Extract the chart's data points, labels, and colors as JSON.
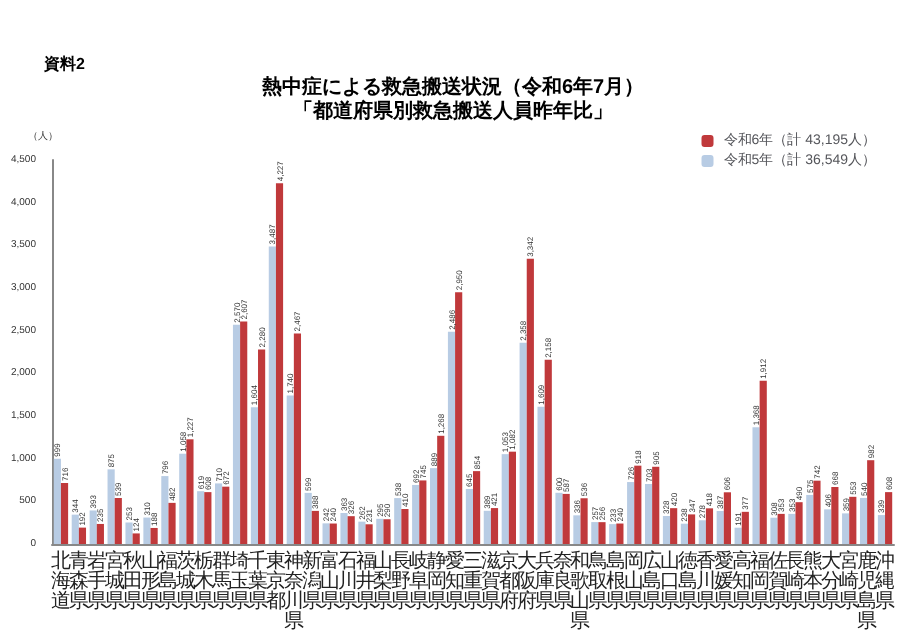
{
  "chart_data": {
    "type": "bar",
    "title": "熱中症による救急搬送状況（令和6年7月）",
    "subtitle": "「都道府県別救急搬送人員昨年比」",
    "ylabel": "（人）",
    "annotations": [
      "資料2"
    ],
    "categories": [
      "北海道",
      "青森県",
      "岩手県",
      "宮城県",
      "秋田県",
      "山形県",
      "福島県",
      "茨城県",
      "栃木県",
      "群馬県",
      "埼玉県",
      "千葉県",
      "東京都",
      "神奈川県",
      "新潟県",
      "富山県",
      "石川県",
      "福井県",
      "山梨県",
      "長野県",
      "岐阜県",
      "静岡県",
      "愛知県",
      "三重県",
      "滋賀県",
      "京都府",
      "大阪府",
      "兵庫県",
      "奈良県",
      "和歌山県",
      "鳥取県",
      "島根県",
      "岡山県",
      "広島県",
      "山口県",
      "徳島県",
      "香川県",
      "愛媛県",
      "高知県",
      "福岡県",
      "佐賀県",
      "長崎県",
      "熊本県",
      "大分県",
      "宮崎県",
      "鹿児島県",
      "沖縄県"
    ],
    "series": [
      {
        "name": "令和5年（計 36,549人）",
        "color": "#b8cce4",
        "values": [
          999,
          344,
          393,
          875,
          253,
          310,
          796,
          1058,
          619,
          710,
          2570,
          1604,
          3487,
          1740,
          599,
          242,
          363,
          262,
          295,
          538,
          692,
          889,
          2486,
          645,
          389,
          1053,
          2358,
          1609,
          600,
          336,
          257,
          233,
          726,
          703,
          328,
          238,
          278,
          387,
          191,
          1368,
          308,
          353,
          575,
          406,
          359,
          540,
          339
        ],
        "value_labels": [
          "999",
          "344",
          "393",
          "875",
          "253",
          "310",
          "796",
          "1,058",
          "619",
          "710",
          "2,570",
          "1,604",
          "3,487",
          "1,740",
          "599",
          "242",
          "363",
          "262",
          "295",
          "538",
          "692",
          "889",
          "2,486",
          "645",
          "389",
          "1,053",
          "2,358",
          "1,609",
          "600",
          "336",
          "257",
          "233",
          "726",
          "703",
          "328",
          "238",
          "278",
          "387",
          "191",
          "1,368",
          "308",
          "353",
          "575",
          "406",
          "359",
          "540",
          "339"
        ]
      },
      {
        "name": "令和6年（計 43,195人）",
        "color": "#c0393b",
        "values": [
          716,
          192,
          235,
          539,
          124,
          188,
          482,
          1227,
          608,
          672,
          2607,
          2280,
          4227,
          2467,
          388,
          240,
          326,
          231,
          290,
          410,
          745,
          1268,
          2950,
          854,
          421,
          1082,
          3342,
          2158,
          587,
          536,
          256,
          240,
          918,
          905,
          420,
          347,
          418,
          606,
          377,
          1912,
          353,
          490,
          742,
          668,
          553,
          982,
          608
        ],
        "value_labels": [
          "716",
          "192",
          "235",
          "539",
          "124",
          "188",
          "482",
          "1,227",
          "608",
          "672",
          "2,607",
          "2,280",
          "4,227",
          "2,467",
          "388",
          "240",
          "326",
          "231",
          "290",
          "410",
          "745",
          "1,268",
          "2,950",
          "854",
          "421",
          "1,082",
          "3,342",
          "2,158",
          "587",
          "536",
          "256",
          "240",
          "918",
          "905",
          "420",
          "347",
          "418",
          "606",
          "377",
          "1,912",
          "353",
          "490",
          "742",
          "668",
          "553",
          "982",
          "608"
        ]
      }
    ],
    "ylim": [
      0,
      4500
    ],
    "yticks": [
      0,
      500,
      {
        "value": 1000,
        "label": "1,000"
      },
      {
        "value": 1500,
        "label": "1,500"
      },
      {
        "value": 2000,
        "label": "2,000"
      },
      {
        "value": 2500,
        "label": "2,500"
      },
      {
        "value": 3000,
        "label": "3,000"
      },
      {
        "value": 3500,
        "label": "3,500"
      },
      {
        "value": 4000,
        "label": "4,000"
      },
      {
        "value": 4500,
        "label": "4,500"
      }
    ],
    "grid": false,
    "legend": "top right"
  }
}
